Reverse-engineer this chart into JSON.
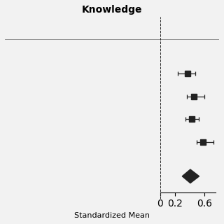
{
  "title": "Knowledge",
  "xlabel": "Standardized Mean",
  "studies": [
    {
      "mean": 0.37,
      "ci_low": 0.24,
      "ci_high": 0.48,
      "y": 4
    },
    {
      "mean": 0.46,
      "ci_low": 0.36,
      "ci_high": 0.6,
      "y": 3
    },
    {
      "mean": 0.43,
      "ci_low": 0.34,
      "ci_high": 0.52,
      "y": 2
    },
    {
      "mean": 0.58,
      "ci_low": 0.5,
      "ci_high": 0.72,
      "y": 1
    }
  ],
  "diamond": {
    "mean": 0.41,
    "ci_low": 0.3,
    "ci_high": 0.53,
    "y": -0.5
  },
  "vline_x": 0.0,
  "xlim": [
    -2.1,
    0.8
  ],
  "xticks": [
    0,
    0.2,
    0.6
  ],
  "ylim": [
    -1.5,
    6.5
  ],
  "marker_color": "#222222",
  "line_color": "#222222",
  "diamond_color": "#222222",
  "bg_color": "#f2f2f2",
  "marker_size": 6,
  "title_fontsize": 10,
  "xlabel_fontsize": 8,
  "tick_fontsize": 7.5,
  "separator_y": 5.5,
  "diamond_half_height": 0.3
}
